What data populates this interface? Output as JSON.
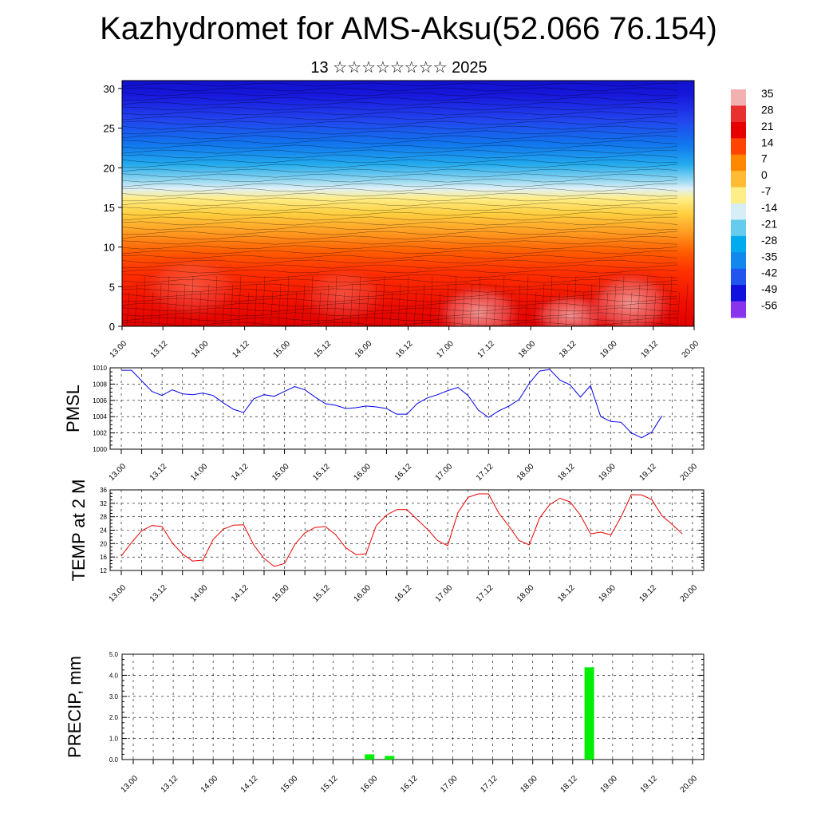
{
  "title": "Kazhydromet for AMS-Aksu(52.066 76.154)",
  "subtitle": "13 ☆☆☆☆☆☆☆☆ 2025",
  "chart_data": [
    {
      "type": "heatmap",
      "description_label": "",
      "x_tick_labels": [
        "13.00",
        "13.12",
        "14.00",
        "14.12",
        "15.00",
        "15.12",
        "16.00",
        "16.12",
        "17.00",
        "17.12",
        "18.00",
        "18.12",
        "19.00",
        "19.12",
        "20.00"
      ],
      "y_ticks": [
        0,
        5,
        10,
        15,
        20,
        25,
        30
      ],
      "ylim": [
        0,
        31
      ],
      "colorbar_labels": [
        "35",
        "28",
        "21",
        "14",
        "7",
        "0",
        "-7",
        "-14",
        "-21",
        "-28",
        "-35",
        "-42",
        "-49",
        "-56"
      ],
      "colorbar_colors": [
        "#f2b0b0",
        "#e83030",
        "#e60000",
        "#ff4400",
        "#ff8800",
        "#ffbb33",
        "#ffee88",
        "#d8eef6",
        "#66ccee",
        "#00aaee",
        "#1188ee",
        "#2255ee",
        "#1111dd",
        "#8833ee"
      ],
      "band_values_by_level": [
        {
          "level": 0,
          "value": 21
        },
        {
          "level": 5,
          "value": 17
        },
        {
          "level": 10,
          "value": 7
        },
        {
          "level": 15,
          "value": -7
        },
        {
          "level": 17,
          "value": -14
        },
        {
          "level": 20,
          "value": -35
        },
        {
          "level": 25,
          "value": -49
        },
        {
          "level": 30,
          "value": -56
        }
      ]
    },
    {
      "type": "line",
      "ylabel": "PMSL",
      "ylim": [
        1000,
        1010
      ],
      "y_ticks": [
        1000,
        1002,
        1004,
        1006,
        1008,
        1010
      ],
      "x_tick_labels": [
        "13.00",
        "13.12",
        "14.00",
        "14.12",
        "15.00",
        "15.12",
        "16.00",
        "16.12",
        "17.00",
        "17.12",
        "18.00",
        "18.12",
        "19.00",
        "19.12",
        "20.00"
      ],
      "series": [
        {
          "color": "#0000ee",
          "x": [
            0,
            0.125,
            0.25,
            0.375,
            0.5,
            0.625,
            0.75,
            0.875,
            1,
            1.125,
            1.25,
            1.375,
            1.5,
            1.625,
            1.75,
            1.875,
            2,
            2.125,
            2.25,
            2.375,
            2.5,
            2.625,
            2.75,
            2.875,
            3,
            3.125,
            3.25,
            3.375,
            3.5,
            3.625,
            3.75,
            3.875,
            4,
            4.125,
            4.25,
            4.375,
            4.5,
            4.625,
            4.75,
            4.875,
            5,
            5.125,
            5.25,
            5.375,
            5.5,
            5.625,
            5.75,
            5.875,
            6,
            6.125,
            6.25,
            6.375,
            6.5,
            6.625
          ],
          "values": [
            1009.7,
            1009.7,
            1008.4,
            1007.1,
            1006.6,
            1007.3,
            1006.8,
            1006.7,
            1006.9,
            1006.6,
            1005.7,
            1004.9,
            1004.5,
            1006.2,
            1006.7,
            1006.5,
            1007.1,
            1007.7,
            1007.3,
            1006.4,
            1005.6,
            1005.4,
            1005.0,
            1005.1,
            1005.3,
            1005.2,
            1005.0,
            1004.3,
            1004.3,
            1005.6,
            1006.3,
            1006.7,
            1007.2,
            1007.6,
            1006.6,
            1004.8,
            1003.9,
            1004.7,
            1005.3,
            1006.1,
            1008.1,
            1009.6,
            1009.8,
            1008.5,
            1007.9,
            1006.4,
            1007.8,
            1004.0,
            1003.4,
            1003.3,
            1002.0,
            1001.4,
            1002.1,
            1004.1
          ]
        }
      ]
    },
    {
      "type": "line",
      "ylabel": "TEMP at 2 M",
      "ylim": [
        12,
        36
      ],
      "y_ticks": [
        12,
        16,
        20,
        24,
        28,
        32,
        36
      ],
      "x_tick_labels": [
        "13.00",
        "13.12",
        "14.00",
        "14.12",
        "15.00",
        "15.12",
        "16.00",
        "16.12",
        "17.00",
        "17.12",
        "18.00",
        "18.12",
        "19.00",
        "19.12",
        "20.00"
      ],
      "series": [
        {
          "color": "#ee0000",
          "x": [
            0,
            0.125,
            0.25,
            0.375,
            0.5,
            0.625,
            0.75,
            0.875,
            1,
            1.125,
            1.25,
            1.375,
            1.5,
            1.625,
            1.75,
            1.875,
            2,
            2.125,
            2.25,
            2.375,
            2.5,
            2.625,
            2.75,
            2.875,
            3,
            3.125,
            3.25,
            3.375,
            3.5,
            3.625,
            3.75,
            3.875,
            4,
            4.125,
            4.25,
            4.375,
            4.5,
            4.625,
            4.75,
            4.875,
            5,
            5.125,
            5.25,
            5.375,
            5.5,
            5.625,
            5.75,
            5.875,
            6,
            6.125,
            6.25,
            6.375,
            6.5,
            6.625,
            6.75,
            6.875
          ],
          "values": [
            16.3,
            20.3,
            23.8,
            25.4,
            25.1,
            20.2,
            16.9,
            14.8,
            15.1,
            21.2,
            24.3,
            25.5,
            25.6,
            19.5,
            15.6,
            13.2,
            14.1,
            19.7,
            23.2,
            24.8,
            25.1,
            22.7,
            18.8,
            16.7,
            17.0,
            25.4,
            28.5,
            30.1,
            30.1,
            27.2,
            24.3,
            20.9,
            19.4,
            29.2,
            33.8,
            34.8,
            34.8,
            29.1,
            25.2,
            20.9,
            19.6,
            27.6,
            31.6,
            33.5,
            32.4,
            28.5,
            22.9,
            23.4,
            22.6,
            28.0,
            34.6,
            34.5,
            33.1,
            28.3,
            25.7,
            22.9
          ]
        }
      ]
    },
    {
      "type": "bar",
      "ylabel": "PRECIP, mm",
      "ylim": [
        0,
        5
      ],
      "y_tick_labels": [
        "0.0",
        "1.0",
        "2.0",
        "3.0",
        "4.0",
        "5.0"
      ],
      "x_tick_labels": [
        "13.00",
        "13.12",
        "14.00",
        "14.12",
        "15.00",
        "15.12",
        "16.00",
        "16.12",
        "17.00",
        "17.12",
        "18.00",
        "18.12",
        "19.00",
        "19.12",
        "20.00"
      ],
      "bar_color": "#00ee00",
      "bars": [
        {
          "x": 2.958,
          "value": 0.25
        },
        {
          "x": 3.208,
          "value": 0.17
        },
        {
          "x": 5.708,
          "value": 4.38
        }
      ]
    }
  ]
}
